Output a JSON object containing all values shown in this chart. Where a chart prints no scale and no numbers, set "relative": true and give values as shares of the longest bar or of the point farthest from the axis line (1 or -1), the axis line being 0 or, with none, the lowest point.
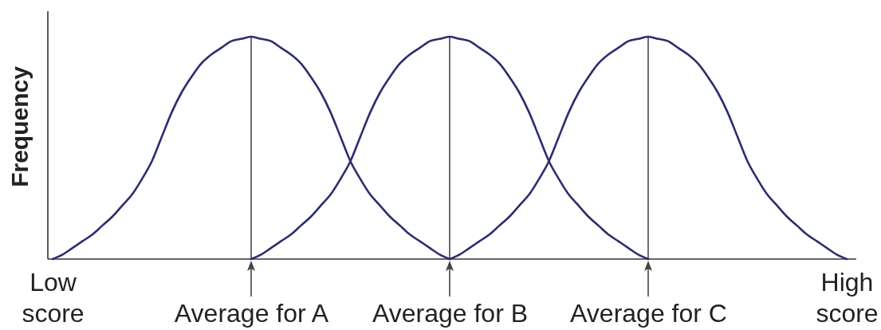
{
  "chart_data": {
    "type": "line",
    "ylabel": "Frequency",
    "relative": true,
    "categories": [
      "Low score",
      null,
      null,
      null,
      null,
      null,
      null,
      null,
      null,
      null,
      null,
      null,
      null,
      null,
      null,
      null,
      null,
      null,
      null,
      null,
      "Average for A",
      null,
      null,
      null,
      null,
      null,
      null,
      null,
      null,
      null,
      null,
      null,
      null,
      null,
      null,
      null,
      null,
      null,
      null,
      null,
      "Average for B",
      null,
      null,
      null,
      null,
      null,
      null,
      null,
      null,
      null,
      null,
      null,
      null,
      null,
      null,
      null,
      null,
      null,
      null,
      null,
      "Average for C",
      null,
      null,
      null,
      null,
      null,
      null,
      null,
      null,
      null,
      null,
      null,
      null,
      null,
      null,
      null,
      null,
      null,
      null,
      null,
      "High score"
    ],
    "ref_lines": [
      {
        "axis": "x",
        "value": "Average for A",
        "color": "#3c3c3c"
      },
      {
        "axis": "x",
        "value": "Average for B",
        "color": "#3c3c3c"
      },
      {
        "axis": "x",
        "value": "Average for C",
        "color": "#3c3c3c"
      }
    ],
    "series": [
      {
        "color": "#2b2d6e",
        "values": [
          0,
          0.02,
          0.05,
          0.08,
          0.11,
          0.15,
          0.19,
          0.24,
          0.29,
          0.36,
          0.44,
          0.55,
          0.66,
          0.75,
          0.82,
          0.88,
          0.92,
          0.95,
          0.98,
          0.99,
          1,
          0.99,
          0.98,
          0.95,
          0.92,
          0.88,
          0.82,
          0.75,
          0.66,
          0.55,
          0.44,
          0.36,
          0.29,
          0.24,
          0.19,
          0.15,
          0.11,
          0.08,
          0.05,
          0.02,
          0,
          null,
          null,
          null,
          null,
          null,
          null,
          null,
          null,
          null,
          null,
          null,
          null,
          null,
          null,
          null,
          null,
          null,
          null,
          null,
          null,
          null,
          null,
          null,
          null,
          null,
          null,
          null,
          null,
          null,
          null,
          null,
          null,
          null,
          null,
          null,
          null,
          null,
          null,
          null,
          null
        ]
      },
      {
        "color": "#2b2d6e",
        "values": [
          null,
          null,
          null,
          null,
          null,
          null,
          null,
          null,
          null,
          null,
          null,
          null,
          null,
          null,
          null,
          null,
          null,
          null,
          null,
          null,
          0,
          0.02,
          0.05,
          0.08,
          0.11,
          0.15,
          0.19,
          0.24,
          0.29,
          0.36,
          0.44,
          0.55,
          0.66,
          0.75,
          0.82,
          0.88,
          0.92,
          0.95,
          0.98,
          0.99,
          1,
          0.99,
          0.98,
          0.95,
          0.92,
          0.88,
          0.82,
          0.75,
          0.66,
          0.55,
          0.44,
          0.36,
          0.29,
          0.24,
          0.19,
          0.15,
          0.11,
          0.08,
          0.05,
          0.02,
          0,
          null,
          null,
          null,
          null,
          null,
          null,
          null,
          null,
          null,
          null,
          null,
          null,
          null,
          null,
          null,
          null,
          null,
          null,
          null,
          null
        ]
      },
      {
        "color": "#2b2d6e",
        "values": [
          null,
          null,
          null,
          null,
          null,
          null,
          null,
          null,
          null,
          null,
          null,
          null,
          null,
          null,
          null,
          null,
          null,
          null,
          null,
          null,
          null,
          null,
          null,
          null,
          null,
          null,
          null,
          null,
          null,
          null,
          null,
          null,
          null,
          null,
          null,
          null,
          null,
          null,
          null,
          null,
          0,
          0.02,
          0.05,
          0.08,
          0.11,
          0.15,
          0.19,
          0.24,
          0.29,
          0.36,
          0.44,
          0.55,
          0.66,
          0.75,
          0.82,
          0.88,
          0.92,
          0.95,
          0.98,
          0.99,
          1,
          0.99,
          0.98,
          0.95,
          0.92,
          0.88,
          0.82,
          0.75,
          0.66,
          0.55,
          0.44,
          0.36,
          0.29,
          0.24,
          0.19,
          0.15,
          0.11,
          0.08,
          0.05,
          0.02,
          0
        ]
      }
    ]
  }
}
